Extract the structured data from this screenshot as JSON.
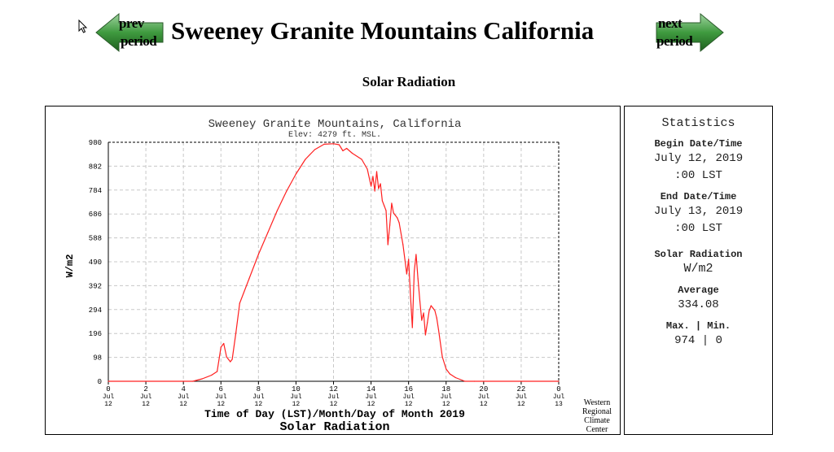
{
  "page": {
    "title": "Sweeney Granite Mountains California",
    "subtitle": "Solar Radiation"
  },
  "nav": {
    "prev_line1": "prev",
    "prev_line2": "period",
    "next_line1": "next",
    "next_line2": "period",
    "arrow_color": "#3a8a3a"
  },
  "chart_data": {
    "type": "line",
    "title": "Sweeney Granite Mountains, California",
    "subtitle": "Elev: 4279 ft. MSL.",
    "ylabel": "W/m2",
    "xlabel": "Time of Day (LST)/Month/Day of Month 2019",
    "xlabel2": "Solar Radiation",
    "credit": [
      "Western",
      "Regional",
      "Climate",
      "Center"
    ],
    "ylim": [
      0,
      980
    ],
    "xlim": [
      0,
      24
    ],
    "yticks": [
      0,
      98,
      196,
      294,
      392,
      490,
      588,
      686,
      784,
      882,
      980
    ],
    "xticks": [
      {
        "v": 0,
        "h": "0",
        "m": "Jul",
        "d": "12"
      },
      {
        "v": 2,
        "h": "2",
        "m": "Jul",
        "d": "12"
      },
      {
        "v": 4,
        "h": "4",
        "m": "Jul",
        "d": "12"
      },
      {
        "v": 6,
        "h": "6",
        "m": "Jul",
        "d": "12"
      },
      {
        "v": 8,
        "h": "8",
        "m": "Jul",
        "d": "12"
      },
      {
        "v": 10,
        "h": "10",
        "m": "Jul",
        "d": "12"
      },
      {
        "v": 12,
        "h": "12",
        "m": "Jul",
        "d": "12"
      },
      {
        "v": 14,
        "h": "14",
        "m": "Jul",
        "d": "12"
      },
      {
        "v": 16,
        "h": "16",
        "m": "Jul",
        "d": "12"
      },
      {
        "v": 18,
        "h": "18",
        "m": "Jul",
        "d": "12"
      },
      {
        "v": 20,
        "h": "20",
        "m": "Jul",
        "d": "12"
      },
      {
        "v": 22,
        "h": "22",
        "m": "Jul",
        "d": "12"
      },
      {
        "v": 24,
        "h": "0",
        "m": "Jul",
        "d": "13"
      }
    ],
    "line_color": "#ff2020",
    "series": [
      {
        "name": "Solar Radiation",
        "x": [
          0,
          4.5,
          5,
          5.5,
          5.8,
          6,
          6.15,
          6.3,
          6.5,
          6.6,
          6.8,
          7,
          7.5,
          8,
          8.5,
          9,
          9.5,
          10,
          10.5,
          11,
          11.5,
          12,
          12.3,
          12.5,
          12.7,
          13,
          13.5,
          13.8,
          14,
          14.1,
          14.2,
          14.3,
          14.4,
          14.5,
          14.6,
          14.7,
          14.8,
          14.9,
          15,
          15.1,
          15.2,
          15.3,
          15.4,
          15.5,
          15.7,
          15.9,
          16,
          16.1,
          16.2,
          16.3,
          16.4,
          16.5,
          16.6,
          16.7,
          16.8,
          16.9,
          17,
          17.1,
          17.2,
          17.3,
          17.4,
          17.5,
          17.6,
          17.8,
          18,
          18.2,
          18.5,
          19,
          19.5,
          24
        ],
        "y": [
          0,
          0,
          10,
          25,
          40,
          140,
          155,
          100,
          80,
          90,
          200,
          320,
          420,
          520,
          610,
          700,
          780,
          850,
          910,
          950,
          972,
          974,
          970,
          945,
          955,
          935,
          910,
          870,
          800,
          840,
          780,
          860,
          790,
          810,
          740,
          720,
          700,
          560,
          640,
          730,
          690,
          680,
          670,
          650,
          560,
          440,
          500,
          350,
          220,
          450,
          520,
          420,
          330,
          250,
          280,
          190,
          240,
          290,
          310,
          300,
          290,
          260,
          210,
          100,
          50,
          30,
          15,
          0,
          0,
          0
        ]
      }
    ]
  },
  "stats": {
    "heading": "Statistics",
    "begin_label": "Begin Date/Time",
    "begin_date": "July 12, 2019",
    "begin_time": ":00 LST",
    "end_label": "End Date/Time",
    "end_date": "July 13, 2019",
    "end_time": ":00 LST",
    "var_name": "Solar Radiation",
    "var_units": "W/m2",
    "avg_label": "Average",
    "avg_value": "334.08",
    "maxmin_label": "Max. | Min.",
    "maxmin_value": "974 | 0"
  }
}
